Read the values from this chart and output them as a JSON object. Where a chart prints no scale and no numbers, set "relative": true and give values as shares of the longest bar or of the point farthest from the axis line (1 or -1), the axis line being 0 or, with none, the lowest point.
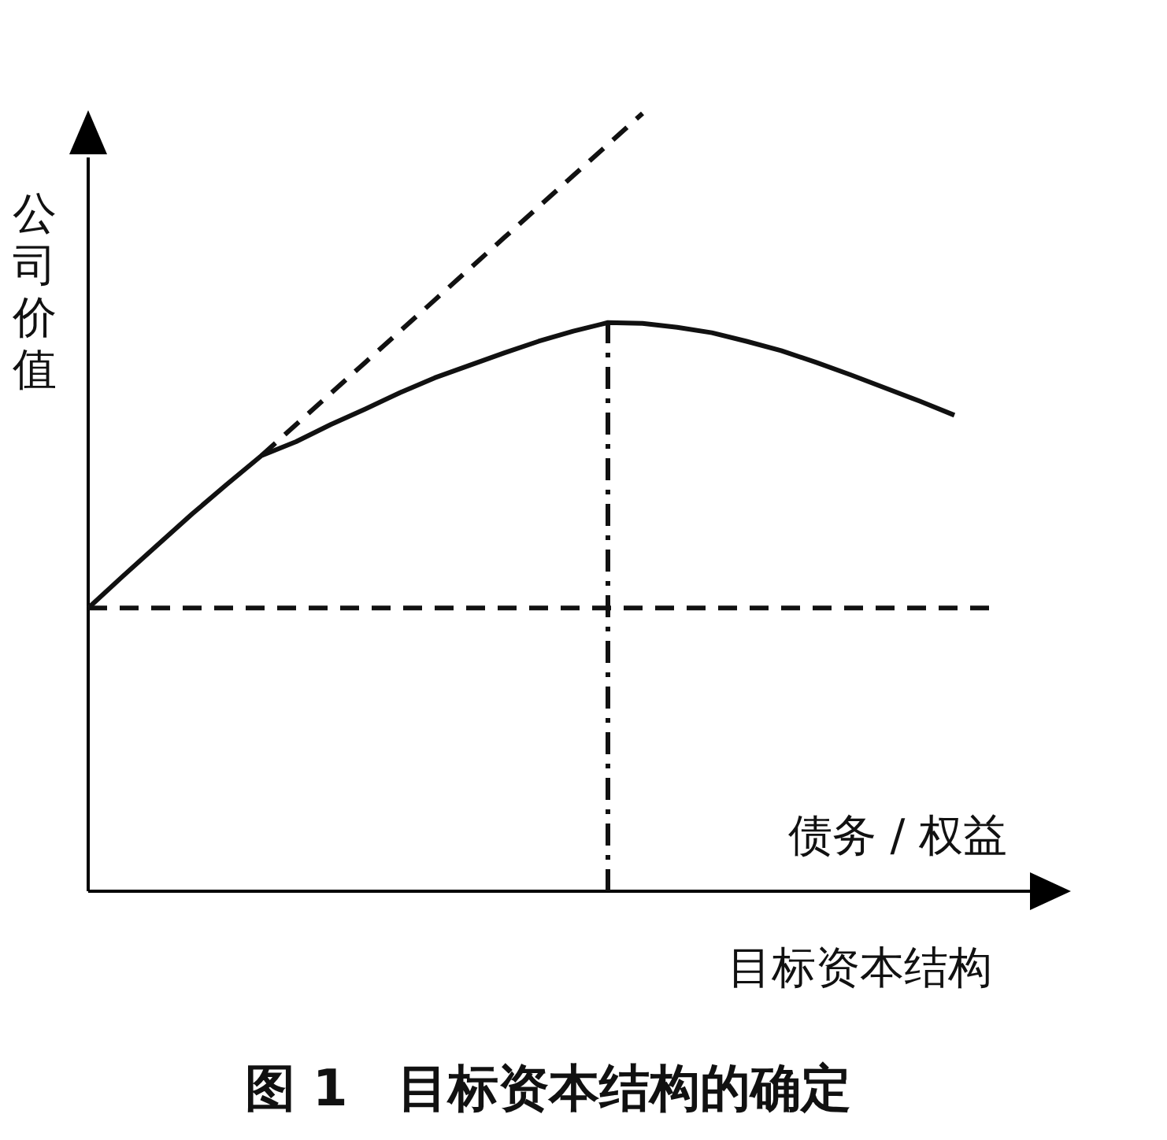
{
  "chart_data": {
    "type": "line",
    "relative": true,
    "title": "图 1　目标资本结构的确定",
    "xlabel": "债务 / 权益",
    "ylabel": "公司价值",
    "annotations": [
      "目标资本结构"
    ],
    "categories": [
      null,
      null,
      null,
      null,
      null,
      null,
      null,
      null,
      null,
      null,
      null,
      null,
      null,
      null,
      null,
      null,
      null,
      null,
      null,
      null,
      null,
      null,
      null,
      null,
      null,
      null,
      null,
      null
    ],
    "series": [
      {
        "color": "#111111",
        "line_style": "solid",
        "values": [
          0.364,
          0.405,
          0.445,
          0.485,
          0.523,
          0.56,
          0.578,
          0.6,
          0.62,
          0.641,
          0.66,
          0.676,
          0.692,
          0.707,
          0.72,
          0.731,
          0.73,
          0.725,
          0.718,
          0.707,
          0.695,
          0.68,
          0.664,
          0.647,
          0.63,
          0.612,
          null,
          null
        ]
      },
      {
        "color": "#111111",
        "line_style": "dashed",
        "values": [
          null,
          null,
          null,
          null,
          null,
          0.56,
          0.6,
          0.64,
          0.68,
          0.72,
          0.76,
          0.8,
          0.84,
          0.88,
          0.92,
          0.96,
          1,
          null,
          null,
          null,
          null,
          null,
          null,
          null,
          null,
          null,
          null,
          null
        ]
      },
      {
        "color": "#111111",
        "line_style": "dashed",
        "values": [
          0.364,
          0.364,
          0.364,
          0.364,
          0.364,
          0.364,
          0.364,
          0.364,
          0.364,
          0.364,
          0.364,
          0.364,
          0.364,
          0.364,
          0.364,
          0.364,
          0.364,
          0.364,
          0.364,
          0.364,
          0.364,
          0.364,
          0.364,
          0.364,
          0.364,
          0.364,
          0.364,
          null
        ]
      }
    ]
  }
}
